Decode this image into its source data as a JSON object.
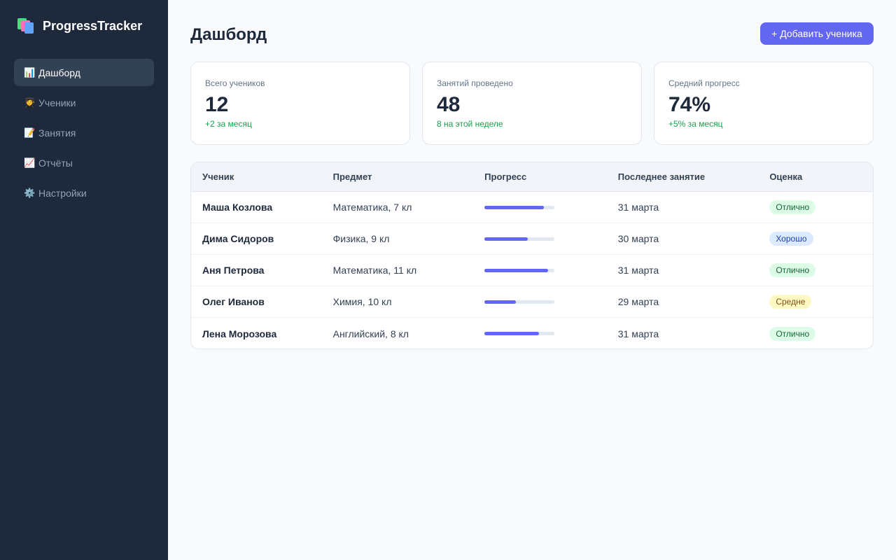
{
  "app": {
    "name": "ProgressTracker",
    "logo_icon": "books-icon"
  },
  "sidebar": {
    "items": [
      {
        "label": "Дашборд",
        "icon": "bar-chart-icon",
        "glyph": "📊",
        "active": true
      },
      {
        "label": "Ученики",
        "icon": "student-icon",
        "glyph": "🧑‍🎓",
        "active": false
      },
      {
        "label": "Занятия",
        "icon": "document-icon",
        "glyph": "📝",
        "active": false
      },
      {
        "label": "Отчёты",
        "icon": "line-chart-icon",
        "glyph": "📈",
        "active": false
      },
      {
        "label": "Настройки",
        "icon": "gear-icon",
        "glyph": "⚙️",
        "active": false
      }
    ]
  },
  "header": {
    "title": "Дашборд",
    "add_button": "+ Добавить ученика"
  },
  "stats": [
    {
      "label": "Всего учеников",
      "value": "12",
      "delta": "+2 за месяц"
    },
    {
      "label": "Занятий проведено",
      "value": "48",
      "delta": "8 на этой неделе"
    },
    {
      "label": "Средний прогресс",
      "value": "74%",
      "delta": "+5% за месяц"
    }
  ],
  "table": {
    "columns": [
      "Ученик",
      "Предмет",
      "Прогресс",
      "Последнее занятие",
      "Оценка"
    ],
    "rows": [
      {
        "student": "Маша Козлова",
        "subject": "Математика, 7 кл",
        "progress": 0.85,
        "date": "31 марта",
        "grade": "Отлично",
        "grade_type": "excellent"
      },
      {
        "student": "Дима Сидоров",
        "subject": "Физика, 9 кл",
        "progress": 0.62,
        "date": "30 марта",
        "grade": "Хорошо",
        "grade_type": "good"
      },
      {
        "student": "Аня Петрова",
        "subject": "Математика, 11 кл",
        "progress": 0.91,
        "date": "31 марта",
        "grade": "Отлично",
        "grade_type": "excellent"
      },
      {
        "student": "Олег Иванов",
        "subject": "Химия, 10 кл",
        "progress": 0.45,
        "date": "29 марта",
        "grade": "Средне",
        "grade_type": "average"
      },
      {
        "student": "Лена Морозова",
        "subject": "Английский, 8 кл",
        "progress": 0.78,
        "date": "31 марта",
        "grade": "Отлично",
        "grade_type": "excellent"
      }
    ]
  },
  "colors": {
    "accent": "#6366f1",
    "sidebar_bg": "#1e293b",
    "positive": "#16a34a"
  }
}
